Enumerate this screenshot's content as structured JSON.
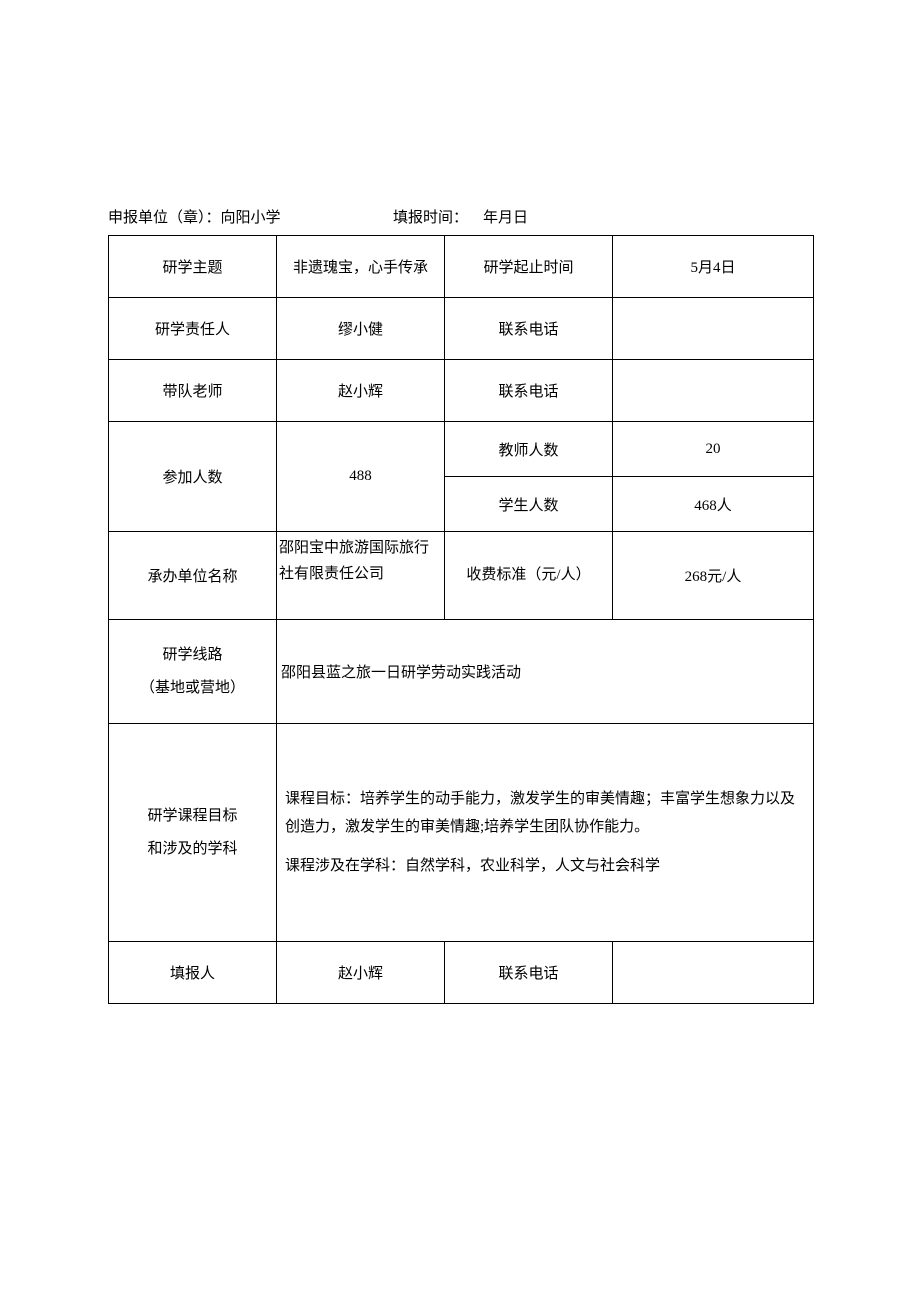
{
  "header": {
    "org_label": "申报单位（章）：",
    "org_name": "向阳小学",
    "time_label": "填报时间：",
    "time_value": "年月日"
  },
  "rows": {
    "theme": {
      "label": "研学主题",
      "value": "非遗瑰宝，心手传承",
      "time_label": "研学起止时间",
      "time_value": "5月4日"
    },
    "leader": {
      "label": "研学责任人",
      "value": "缪小健",
      "phone_label": "联系电话",
      "phone_value": ""
    },
    "teacher": {
      "label": "带队老师",
      "value": "赵小辉",
      "phone_label": "联系电话",
      "phone_value": ""
    },
    "participants": {
      "label": "参加人数",
      "total": "488",
      "teacher_label": "教师人数",
      "teacher_count": "20",
      "student_label": "学生人数",
      "student_count": "468人"
    },
    "organizer": {
      "label": "承办单位名称",
      "value": "邵阳宝中旅游国际旅行社有限责任公司",
      "fee_label": "收费标准（元/人）",
      "fee_value": "268元/人"
    },
    "route": {
      "label_line1": "研学线路",
      "label_line2": "（基地或营地）",
      "value": "邵阳县蓝之旅一日研学劳动实践活动"
    },
    "goals": {
      "label_line1": "研学课程目标",
      "label_line2": "和涉及的学科",
      "para1": "课程目标：培养学生的动手能力，激发学生的审美情趣；丰富学生想象力以及创造力，激发学生的审美情趣;培养学生团队协作能力。",
      "para2": "课程涉及在学科：自然学科，农业科学，人文与社会科学"
    },
    "reporter": {
      "label": "填报人",
      "value": "赵小辉",
      "phone_label": "联系电话",
      "phone_value": ""
    }
  }
}
